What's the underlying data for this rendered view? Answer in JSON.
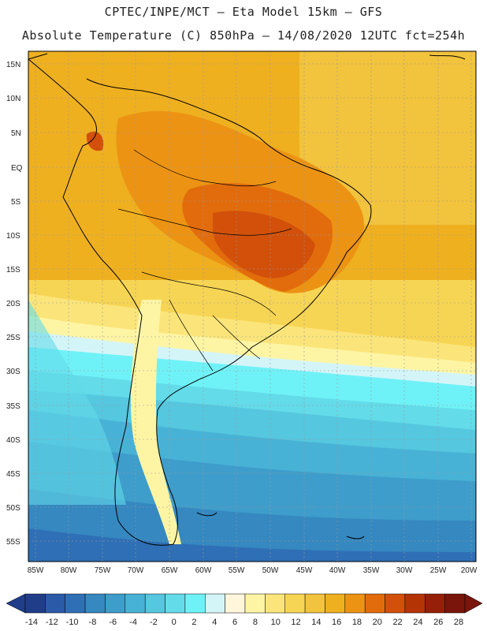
{
  "header": {
    "line1": "CPTEC/INPE/MCT –  Eta Model 15km – GFS",
    "line2": "Absolute Temperature (C) 850hPa – 14/08/2020 12UTC fct=254h"
  },
  "map": {
    "lat_labels": [
      "15N",
      "10N",
      "5N",
      "EQ",
      "5S",
      "10S",
      "15S",
      "20S",
      "25S",
      "30S",
      "35S",
      "40S",
      "45S",
      "50S",
      "55S"
    ],
    "lon_labels": [
      "85W",
      "80W",
      "75W",
      "70W",
      "65W",
      "60W",
      "55W",
      "50W",
      "45W",
      "40W",
      "35W",
      "30W",
      "25W",
      "20W"
    ]
  },
  "legend": {
    "ticks": [
      "-14",
      "-12",
      "-10",
      "-8",
      "-6",
      "-4",
      "-2",
      "0",
      "2",
      "4",
      "6",
      "8",
      "10",
      "12",
      "14",
      "16",
      "18",
      "20",
      "22",
      "24",
      "26",
      "28"
    ],
    "colors": [
      "#203d8a",
      "#2a5aa8",
      "#2f6fb5",
      "#3588c0",
      "#3e9dcb",
      "#48b2d6",
      "#55c7df",
      "#63dbe9",
      "#6ff2f7",
      "#d4f5f8",
      "#fff6dc",
      "#fdf5a4",
      "#fbe57a",
      "#f7d554",
      "#f2c33c",
      "#efb020",
      "#ec9314",
      "#e26c0c",
      "#d2500a",
      "#b43406",
      "#962007",
      "#7a150c"
    ]
  }
}
